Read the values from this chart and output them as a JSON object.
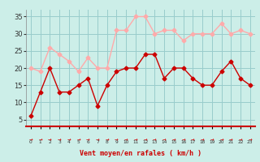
{
  "x": [
    0,
    1,
    2,
    3,
    4,
    5,
    6,
    7,
    8,
    9,
    10,
    11,
    12,
    13,
    14,
    15,
    16,
    17,
    18,
    19,
    20,
    21,
    22,
    23
  ],
  "avg_wind": [
    6,
    13,
    20,
    13,
    13,
    15,
    17,
    9,
    15,
    19,
    20,
    20,
    24,
    24,
    17,
    20,
    20,
    17,
    15,
    15,
    19,
    22,
    17,
    15
  ],
  "gust_wind": [
    20,
    19,
    26,
    24,
    22,
    19,
    23,
    20,
    20,
    31,
    31,
    35,
    35,
    30,
    31,
    31,
    28,
    30,
    30,
    30,
    33,
    30,
    31,
    30
  ],
  "avg_color": "#cc0000",
  "gust_color": "#ffaaaa",
  "bg_color": "#cceee8",
  "grid_color": "#99cccc",
  "xlabel": "Vent moyen/en rafales ( km/h )",
  "xlabel_color": "#cc0000",
  "yticks": [
    5,
    10,
    15,
    20,
    25,
    30,
    35
  ],
  "ylim": [
    3,
    37
  ],
  "xlim": [
    -0.5,
    23.5
  ],
  "marker": "D",
  "markersize": 2.5,
  "linewidth": 1.0
}
